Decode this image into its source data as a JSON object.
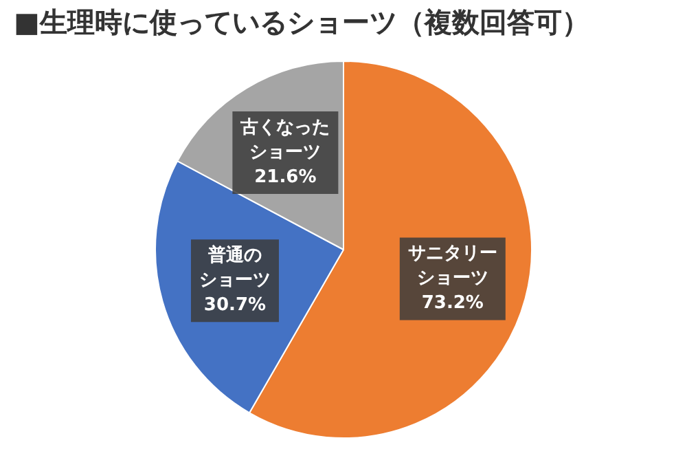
{
  "chart_data": {
    "type": "pie",
    "title": "■生理時に使っているショーツ（複数回答可）",
    "categories": [
      "サニタリーショーツ",
      "普通のショーツ",
      "古くなったショーツ"
    ],
    "values": [
      73.2,
      30.7,
      21.6
    ],
    "colors": [
      "#ed7d31",
      "#4472c4",
      "#a5a5a5"
    ],
    "value_labels": [
      "73.2%",
      "30.7%",
      "21.6%"
    ],
    "legend": false
  }
}
